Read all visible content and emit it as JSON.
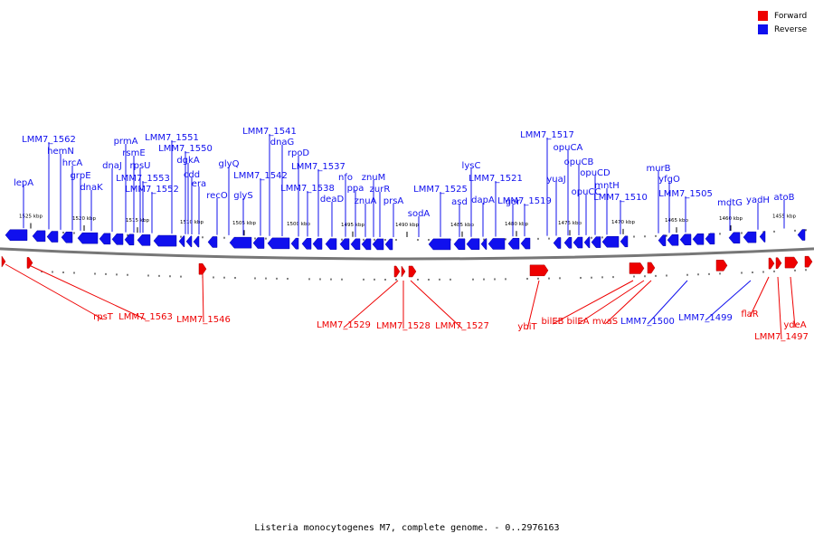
{
  "legend": {
    "forward_label": "Forward",
    "reverse_label": "Reverse",
    "forward_color": "#ee0000",
    "reverse_color": "#1010ee"
  },
  "caption": "Listeria monocytogenes M7, complete genome. - 0..2976163",
  "track_color": "#777777",
  "ticks": [
    "1525 kbp",
    "1520 kbp",
    "1515 kbp",
    "1510 kbp",
    "1505 kbp",
    "1500 kbp",
    "1495 kbp",
    "1490 kbp",
    "1485 kbp",
    "1480 kbp",
    "1475 kbp",
    "1470 kbp",
    "1465 kbp",
    "1460 kbp",
    "1455 kbp"
  ],
  "reverse_labels": [
    "lepA",
    "LMM7_1562",
    "hemN",
    "hrcA",
    "grpE",
    "dnaK",
    "dnaJ",
    "prmA",
    "rsmE",
    "rpsU",
    "LMM7_1553",
    "LMM7_1552",
    "LMM7_1551",
    "LMM7_1550",
    "dgkA",
    "cdd",
    "era",
    "recO",
    "glyQ",
    "glyS",
    "LMM7_1542",
    "LMM7_1541",
    "dnaG",
    "rpoD",
    "LMM7_1538",
    "LMM7_1537",
    "deaD",
    "nfo",
    "ppa",
    "znuA",
    "znuM",
    "zurR",
    "prsA",
    "sodA",
    "LMM7_1525",
    "asd",
    "lysC",
    "dapA",
    "LMM7_1521",
    "gor",
    "LMM7_1519",
    "LMM7_1517",
    "yuaJ",
    "opuCA",
    "opuCB",
    "opuCC",
    "opuCD",
    "mntH",
    "LMM7_1510",
    "murB",
    "yfgO",
    "LMM7_1505",
    "mdtG",
    "yadH",
    "atoB"
  ],
  "below_labels": [
    "rpsT",
    "LMM7_1563",
    "LMM7_1546",
    "LMM7_1529",
    "LMM7_1528",
    "LMM7_1527",
    "ybiT",
    "bilEB",
    "bilEA",
    "mvaS",
    "LMM7_1500",
    "LMM7_1499",
    "flaR",
    "ydeA",
    "LMM7_1497"
  ]
}
